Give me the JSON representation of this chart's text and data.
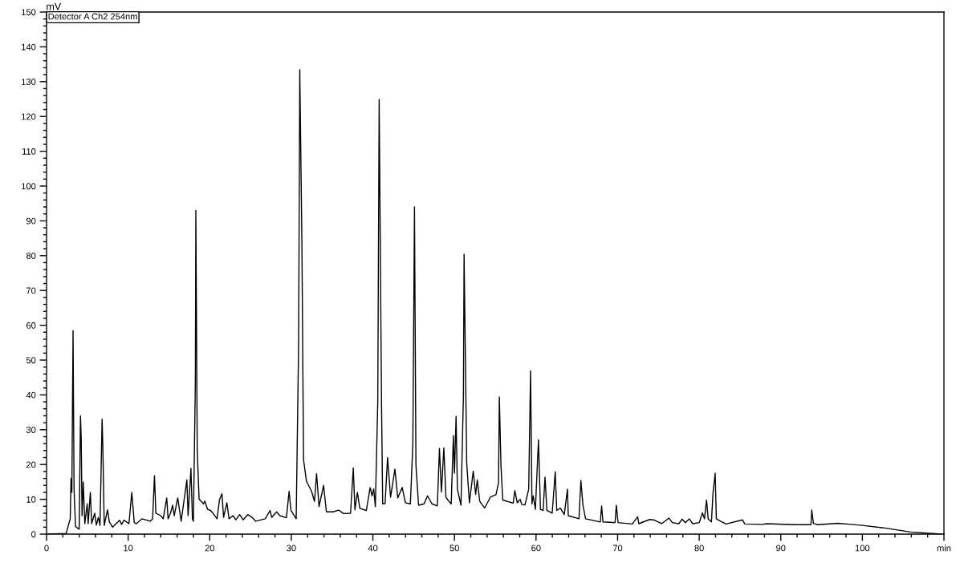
{
  "chart_data": {
    "type": "line",
    "ylabel": "mV",
    "annotations": [
      "Detector A Ch2 254nm"
    ],
    "xlim": [
      0,
      110
    ],
    "ylim": [
      0,
      150
    ],
    "xticks": [
      0,
      {
        "value": 2,
        "label": null
      },
      {
        "value": 4,
        "label": null
      },
      {
        "value": 6,
        "label": null
      },
      {
        "value": 8,
        "label": null
      },
      10,
      {
        "value": 12,
        "label": null
      },
      {
        "value": 14,
        "label": null
      },
      {
        "value": 16,
        "label": null
      },
      {
        "value": 18,
        "label": null
      },
      20,
      {
        "value": 22,
        "label": null
      },
      {
        "value": 24,
        "label": null
      },
      {
        "value": 26,
        "label": null
      },
      {
        "value": 28,
        "label": null
      },
      30,
      {
        "value": 32,
        "label": null
      },
      {
        "value": 34,
        "label": null
      },
      {
        "value": 36,
        "label": null
      },
      {
        "value": 38,
        "label": null
      },
      40,
      {
        "value": 42,
        "label": null
      },
      {
        "value": 44,
        "label": null
      },
      {
        "value": 46,
        "label": null
      },
      {
        "value": 48,
        "label": null
      },
      50,
      {
        "value": 52,
        "label": null
      },
      {
        "value": 54,
        "label": null
      },
      {
        "value": 56,
        "label": null
      },
      {
        "value": 58,
        "label": null
      },
      60,
      {
        "value": 62,
        "label": null
      },
      {
        "value": 64,
        "label": null
      },
      {
        "value": 66,
        "label": null
      },
      {
        "value": 68,
        "label": null
      },
      70,
      {
        "value": 72,
        "label": null
      },
      {
        "value": 74,
        "label": null
      },
      {
        "value": 76,
        "label": null
      },
      {
        "value": 78,
        "label": null
      },
      80,
      {
        "value": 82,
        "label": null
      },
      {
        "value": 84,
        "label": null
      },
      {
        "value": 86,
        "label": null
      },
      {
        "value": 88,
        "label": null
      },
      90,
      {
        "value": 92,
        "label": null
      },
      {
        "value": 94,
        "label": null
      },
      {
        "value": 96,
        "label": null
      },
      {
        "value": 98,
        "label": null
      },
      100,
      {
        "value": 102,
        "label": null
      },
      {
        "value": 104,
        "label": null
      },
      {
        "value": 106,
        "label": null
      },
      {
        "value": 108,
        "label": null
      },
      {
        "value": 110,
        "label": "min"
      }
    ],
    "yticks": [
      0,
      {
        "value": 2,
        "label": null
      },
      {
        "value": 4,
        "label": null
      },
      {
        "value": 6,
        "label": null
      },
      {
        "value": 8,
        "label": null
      },
      10,
      {
        "value": 12,
        "label": null
      },
      {
        "value": 14,
        "label": null
      },
      {
        "value": 16,
        "label": null
      },
      {
        "value": 18,
        "label": null
      },
      20,
      {
        "value": 22,
        "label": null
      },
      {
        "value": 24,
        "label": null
      },
      {
        "value": 26,
        "label": null
      },
      {
        "value": 28,
        "label": null
      },
      30,
      {
        "value": 32,
        "label": null
      },
      {
        "value": 34,
        "label": null
      },
      {
        "value": 36,
        "label": null
      },
      {
        "value": 38,
        "label": null
      },
      40,
      {
        "value": 42,
        "label": null
      },
      {
        "value": 44,
        "label": null
      },
      {
        "value": 46,
        "label": null
      },
      {
        "value": 48,
        "label": null
      },
      50,
      {
        "value": 52,
        "label": null
      },
      {
        "value": 54,
        "label": null
      },
      {
        "value": 56,
        "label": null
      },
      {
        "value": 58,
        "label": null
      },
      60,
      {
        "value": 62,
        "label": null
      },
      {
        "value": 64,
        "label": null
      },
      {
        "value": 66,
        "label": null
      },
      {
        "value": 68,
        "label": null
      },
      70,
      {
        "value": 72,
        "label": null
      },
      {
        "value": 74,
        "label": null
      },
      {
        "value": 76,
        "label": null
      },
      {
        "value": 78,
        "label": null
      },
      80,
      {
        "value": 82,
        "label": null
      },
      {
        "value": 84,
        "label": null
      },
      {
        "value": 86,
        "label": null
      },
      {
        "value": 88,
        "label": null
      },
      90,
      {
        "value": 92,
        "label": null
      },
      {
        "value": 94,
        "label": null
      },
      {
        "value": 96,
        "label": null
      },
      {
        "value": 98,
        "label": null
      },
      100,
      {
        "value": 102,
        "label": null
      },
      {
        "value": 104,
        "label": null
      },
      {
        "value": 106,
        "label": null
      },
      {
        "value": 108,
        "label": null
      },
      110,
      {
        "value": 112,
        "label": null
      },
      {
        "value": 114,
        "label": null
      },
      {
        "value": 116,
        "label": null
      },
      {
        "value": 118,
        "label": null
      },
      120,
      {
        "value": 122,
        "label": null
      },
      {
        "value": 124,
        "label": null
      },
      {
        "value": 126,
        "label": null
      },
      {
        "value": 128,
        "label": null
      },
      130,
      {
        "value": 132,
        "label": null
      },
      {
        "value": 134,
        "label": null
      },
      {
        "value": 136,
        "label": null
      },
      {
        "value": 138,
        "label": null
      },
      140,
      {
        "value": 142,
        "label": null
      },
      {
        "value": 144,
        "label": null
      },
      {
        "value": 146,
        "label": null
      },
      {
        "value": 148,
        "label": null
      },
      150
    ],
    "grid": false,
    "marker": "none",
    "line_style": "solid",
    "series": [
      {
        "color": "#000000",
        "x": [
          0,
          2.4,
          2.9,
          3.0,
          3.1,
          3.25,
          3.37,
          3.55,
          4.0,
          4.16,
          4.25,
          4.35,
          4.49,
          4.69,
          4.98,
          5.1,
          5.37,
          5.53,
          5.9,
          6.1,
          6.35,
          6.55,
          6.81,
          6.9,
          7.07,
          7.47,
          7.7,
          8.1,
          8.95,
          9.2,
          9.5,
          10.1,
          10.45,
          10.75,
          11.0,
          11.7,
          12.7,
          13.0,
          13.23,
          13.4,
          14.0,
          14.3,
          14.73,
          14.9,
          15.2,
          15.45,
          15.65,
          16.08,
          16.5,
          17.2,
          17.35,
          17.7,
          17.88,
          18.0,
          18.24,
          18.3,
          18.47,
          18.7,
          19.25,
          19.4,
          19.74,
          20.1,
          20.4,
          20.9,
          21.2,
          21.5,
          21.7,
          22.1,
          22.37,
          22.86,
          23.2,
          23.67,
          24.1,
          24.66,
          25.2,
          25.64,
          26.8,
          27.4,
          27.6,
          28.2,
          28.6,
          29.4,
          29.73,
          29.96,
          30.6,
          30.9,
          31.04,
          31.3,
          31.5,
          31.86,
          32.5,
          32.84,
          33.1,
          33.4,
          33.96,
          34.3,
          35.1,
          35.8,
          36.4,
          37.26,
          37.6,
          37.8,
          38.1,
          38.4,
          39.2,
          39.66,
          39.9,
          40.1,
          40.3,
          40.6,
          40.77,
          41.06,
          41.2,
          41.5,
          41.8,
          42.17,
          42.7,
          43.05,
          43.6,
          43.98,
          44.6,
          44.9,
          45.1,
          45.28,
          45.6,
          46.27,
          46.7,
          47.25,
          47.9,
          48.16,
          48.4,
          48.7,
          48.95,
          49.4,
          49.6,
          49.87,
          50.0,
          50.2,
          50.36,
          50.8,
          51.1,
          51.18,
          51.5,
          51.83,
          52.3,
          52.6,
          52.8,
          53.1,
          53.7,
          54.4,
          55.1,
          55.4,
          55.5,
          55.7,
          55.92,
          57.2,
          57.4,
          57.7,
          58.05,
          58.25,
          58.64,
          59.1,
          59.33,
          59.5,
          59.66,
          59.92,
          60.3,
          60.54,
          60.87,
          61.1,
          61.33,
          61.98,
          62.35,
          62.54,
          62.97,
          63.46,
          63.85,
          63.95,
          65.26,
          65.5,
          65.75,
          66.07,
          67.88,
          68.04,
          68.2,
          69.68,
          69.84,
          70.05,
          71.8,
          72.46,
          72.6,
          73.93,
          74.4,
          75.4,
          76.3,
          76.7,
          77.5,
          77.9,
          78.3,
          78.78,
          79.2,
          80.0,
          80.4,
          80.65,
          80.9,
          81.1,
          81.5,
          81.7,
          81.96,
          82.1,
          82.6,
          83.3,
          85.3,
          85.6,
          87.8,
          88.2,
          91.75,
          93.7,
          93.8,
          94.0,
          94.5,
          97.0,
          98.66,
          100,
          102.6,
          105.9,
          109.7
        ],
        "values": [
          0,
          0.2,
          4.4,
          16,
          12,
          58.5,
          13,
          2.2,
          1.4,
          34,
          27.5,
          5.3,
          15,
          3,
          8.7,
          3,
          12,
          3,
          6,
          2.6,
          4.8,
          2.5,
          33,
          25,
          2.5,
          7,
          3.5,
          2,
          4,
          2.8,
          4,
          3,
          12,
          3.3,
          3,
          4.4,
          3.7,
          4.4,
          16.8,
          6,
          5.3,
          4.4,
          10.4,
          4.4,
          6.1,
          8.3,
          5.3,
          10.4,
          3.7,
          15.6,
          5.3,
          18.9,
          4.4,
          3.7,
          43.6,
          93,
          24,
          10,
          8.7,
          9.5,
          7.1,
          6.8,
          6,
          4.4,
          9.9,
          11.6,
          4.8,
          9,
          4.4,
          5.3,
          4.1,
          5.6,
          4.1,
          5.6,
          4.8,
          3.7,
          4.4,
          6.8,
          4.8,
          6.4,
          5.3,
          4.7,
          12.3,
          6.8,
          4.4,
          55,
          133.4,
          84,
          21.4,
          15.2,
          12.2,
          9.4,
          17.4,
          7.9,
          14,
          6.4,
          6.4,
          6.9,
          5.9,
          6,
          19,
          7,
          12,
          7.4,
          6.8,
          13.4,
          11,
          13,
          7.9,
          38,
          124.9,
          38,
          8.7,
          8.8,
          22,
          10.6,
          18.7,
          10.4,
          13.4,
          9,
          8.7,
          26,
          94,
          19.8,
          8.3,
          8.7,
          11,
          8.7,
          8.1,
          24.6,
          12.1,
          24.8,
          10.6,
          9.2,
          8.7,
          28.3,
          17.5,
          33.8,
          12.9,
          8.3,
          40,
          80.4,
          20.6,
          9,
          18.1,
          11.4,
          15.6,
          9.4,
          7.5,
          10.6,
          11.4,
          14.7,
          39.4,
          19.8,
          9.8,
          8.9,
          12.5,
          9,
          10,
          8.5,
          8.4,
          12.9,
          46.9,
          8.7,
          11,
          7.1,
          27.1,
          7.1,
          6.8,
          16.4,
          6.8,
          6,
          17.9,
          6.8,
          7.5,
          5.6,
          12.9,
          5.3,
          4.4,
          15.4,
          8.3,
          4.4,
          3.5,
          8.1,
          3.5,
          3.3,
          8.3,
          3.3,
          2.9,
          5,
          3,
          4.2,
          4.1,
          3,
          4.6,
          3.3,
          3,
          4.3,
          3.3,
          4.4,
          3,
          3.3,
          6.1,
          4.4,
          9.8,
          4.4,
          3.5,
          12,
          17.5,
          4.4,
          3.7,
          2.9,
          4.1,
          2.9,
          2.8,
          3,
          2.7,
          2.7,
          6.9,
          3.1,
          2.7,
          3.1,
          2.8,
          2.5,
          1.8,
          0.6,
          0
        ]
      }
    ]
  }
}
